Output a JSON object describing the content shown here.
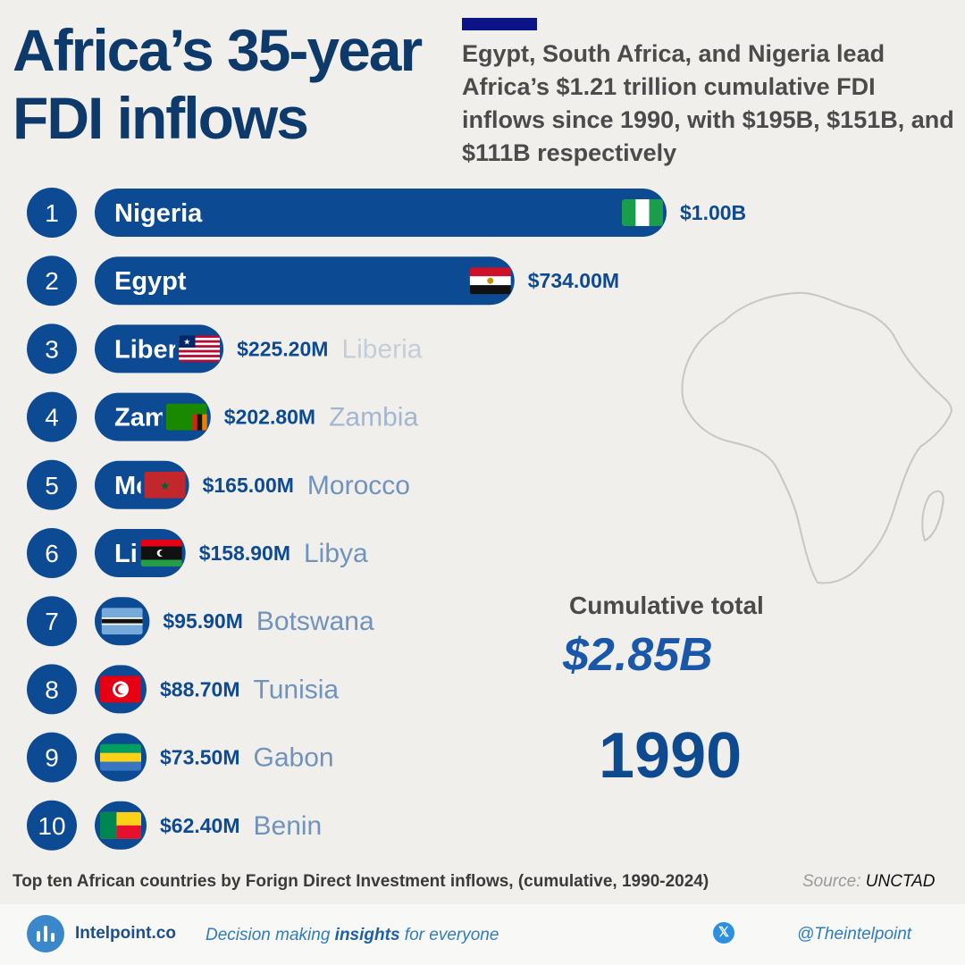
{
  "header": {
    "title_line1": "Africa’s 35-year",
    "title_line2": "FDI inflows",
    "subtitle": "Egypt, South Africa, and Nigeria lead Africa’s $1.21 trillion cumulative FDI inflows since 1990, with $195B, $151B, and $111B respectively"
  },
  "chart_data": {
    "type": "bar",
    "orientation": "horizontal",
    "year": "1990",
    "categories": [
      "Nigeria",
      "Egypt",
      "Liberia",
      "Zambia",
      "Morocco",
      "Libya",
      "Botswana",
      "Tunisia",
      "Gabon",
      "Benin"
    ],
    "ranks": [
      "1",
      "2",
      "3",
      "4",
      "5",
      "6",
      "7",
      "8",
      "9",
      "10"
    ],
    "values": [
      1000,
      734,
      225.2,
      202.8,
      165,
      158.9,
      95.9,
      88.7,
      73.5,
      62.4
    ],
    "value_labels": [
      "$1.00B",
      "$734.00M",
      "$225.20M",
      "$202.80M",
      "$165.00M",
      "$158.90M",
      "$95.90M",
      "$88.70M",
      "$73.50M",
      "$62.40M"
    ],
    "unit": "USD millions",
    "colors": {
      "bar": "#0d4a94",
      "rank_circle": "#0d4a94",
      "value_text": "#0d4a94",
      "outside_name": "#6f93bd"
    },
    "flags": [
      "nigeria-flag",
      "egypt-flag",
      "liberia-flag",
      "zambia-flag",
      "morocco-flag",
      "libya-flag",
      "botswana-flag",
      "tunisia-flag",
      "gabon-flag",
      "benin-flag"
    ]
  },
  "summary": {
    "cumulative_label": "Cumulative total",
    "cumulative_value": "$2.85B",
    "year": "1990"
  },
  "footnote": {
    "caption": "Top ten African countries by Forign Direct Investment inflows, (cumulative, 1990-2024)",
    "source_label": "Source:",
    "source_value": "UNCTAD"
  },
  "footer": {
    "brand": "Intelpoint.co",
    "tagline_pre": "Decision making ",
    "tagline_bold": "insights",
    "tagline_post": " for everyone",
    "handle": "@Theintelpoint",
    "logo_icon": "intelpoint-logo-icon",
    "social_icon": "x-twitter-icon"
  }
}
